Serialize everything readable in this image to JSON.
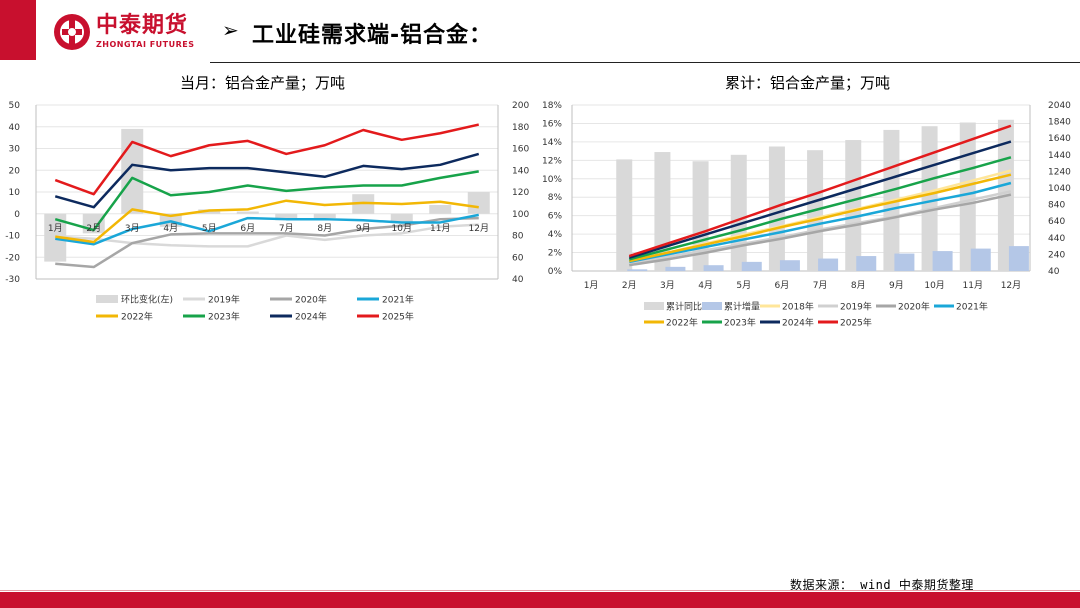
{
  "header": {
    "logo_cn": "中泰期货",
    "logo_en": "ZHONGTAI FUTURES",
    "arrow": "➢",
    "title": "工业硅需求端-铝合金："
  },
  "footer": {
    "source": "数据来源： wind 中泰期货整理"
  },
  "colors": {
    "brand": "#c8102e"
  },
  "chart_data": [
    {
      "type": "line",
      "title": "当月：铝合金产量；万吨",
      "categories": [
        "1月",
        "2月",
        "3月",
        "4月",
        "5月",
        "6月",
        "7月",
        "8月",
        "9月",
        "10月",
        "11月",
        "12月"
      ],
      "left_axis": {
        "min": -30,
        "max": 50,
        "ticks": [
          -30,
          -20,
          -10,
          0,
          10,
          20,
          30,
          40,
          50
        ]
      },
      "right_axis": {
        "min": 40,
        "max": 200,
        "ticks": [
          40,
          60,
          80,
          100,
          120,
          140,
          160,
          180,
          200
        ]
      },
      "bars": {
        "name": "环比变化(左)",
        "color": "#d9d9d9",
        "values": [
          -22,
          -9,
          39,
          -6,
          2,
          1,
          -3,
          -2,
          9,
          -4,
          4,
          10
        ]
      },
      "series": [
        {
          "name": "2019年",
          "color": "#d9d9d9",
          "values": [
            79,
            77,
            73,
            71,
            70,
            70,
            80,
            76,
            80,
            82,
            88,
            90
          ]
        },
        {
          "name": "2020年",
          "color": "#a6a6a6",
          "values": [
            54,
            51,
            73,
            81,
            82,
            82,
            82,
            80,
            86,
            89,
            95,
            96
          ]
        },
        {
          "name": "2021年",
          "color": "#1aa7d8",
          "values": [
            77,
            72,
            86,
            93,
            84,
            96,
            95,
            95,
            94,
            92,
            92,
            99
          ]
        },
        {
          "name": "2022年",
          "color": "#f2b705",
          "values": [
            79,
            74,
            104,
            98,
            103,
            104,
            112,
            108,
            110,
            109,
            111,
            106
          ]
        },
        {
          "name": "2023年",
          "color": "#17a34a",
          "values": [
            95,
            85,
            133,
            117,
            120,
            126,
            121,
            124,
            126,
            126,
            133,
            139
          ]
        },
        {
          "name": "2024年",
          "color": "#0d2a5e",
          "values": [
            116,
            106,
            145,
            140,
            142,
            142,
            138,
            134,
            144,
            141,
            145,
            155
          ]
        },
        {
          "name": "2025年",
          "color": "#e31a1c",
          "values": [
            131,
            118,
            166,
            153,
            163,
            167,
            155,
            163,
            177,
            168,
            174,
            182
          ]
        }
      ]
    },
    {
      "type": "line",
      "title": "累计：铝合金产量；万吨",
      "categories": [
        "1月",
        "2月",
        "3月",
        "4月",
        "5月",
        "6月",
        "7月",
        "8月",
        "9月",
        "10月",
        "11月",
        "12月"
      ],
      "left_axis": {
        "min": 0,
        "max": 18,
        "ticks": [
          "0%",
          "2%",
          "4%",
          "6%",
          "8%",
          "10%",
          "12%",
          "14%",
          "16%",
          "18%"
        ]
      },
      "right_axis": {
        "min": 40,
        "max": 2040,
        "ticks": [
          40,
          240,
          440,
          640,
          840,
          1040,
          1240,
          1440,
          1640,
          1840,
          2040
        ]
      },
      "bars_yoy": {
        "name": "累计同比",
        "color": "#d9d9d9",
        "values": [
          null,
          12.1,
          12.9,
          11.9,
          12.6,
          13.5,
          13.1,
          14.2,
          15.3,
          15.7,
          16.1,
          16.4
        ]
      },
      "bars_inc": {
        "name": "累计增量",
        "color": "#b4c7e7",
        "values": [
          null,
          60,
          90,
          110,
          150,
          170,
          190,
          220,
          250,
          280,
          310,
          340
        ]
      },
      "series": [
        {
          "name": "2018年",
          "color": "#ffe699",
          "values": [
            null,
            140,
            260,
            370,
            480,
            580,
            690,
            790,
            900,
            1010,
            1130,
            1250
          ]
        },
        {
          "name": "2019年",
          "color": "#d0d0d0",
          "values": [
            null,
            130,
            210,
            290,
            370,
            450,
            540,
            620,
            700,
            800,
            900,
            1000
          ]
        },
        {
          "name": "2020年",
          "color": "#a6a6a6",
          "values": [
            null,
            110,
            180,
            260,
            350,
            430,
            520,
            600,
            690,
            780,
            860,
            960
          ]
        },
        {
          "name": "2021年",
          "color": "#1aa7d8",
          "values": [
            null,
            150,
            240,
            330,
            420,
            510,
            610,
            700,
            800,
            890,
            980,
            1100
          ]
        },
        {
          "name": "2022年",
          "color": "#f2b705",
          "values": [
            null,
            160,
            260,
            360,
            460,
            570,
            670,
            780,
            880,
            980,
            1090,
            1200
          ]
        },
        {
          "name": "2023年",
          "color": "#17a34a",
          "values": [
            null,
            180,
            300,
            420,
            540,
            670,
            790,
            910,
            1030,
            1160,
            1280,
            1410
          ]
        },
        {
          "name": "2024年",
          "color": "#0d2a5e",
          "values": [
            null,
            200,
            340,
            480,
            620,
            760,
            900,
            1040,
            1180,
            1320,
            1460,
            1600
          ]
        },
        {
          "name": "2025年",
          "color": "#e31a1c",
          "values": [
            null,
            220,
            370,
            520,
            680,
            840,
            990,
            1150,
            1310,
            1470,
            1630,
            1790
          ]
        }
      ]
    }
  ]
}
